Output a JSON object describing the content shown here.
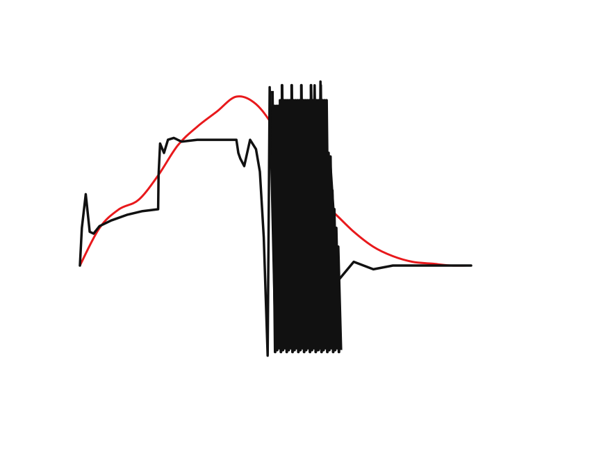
{
  "chart_data": {
    "type": "line",
    "title": "",
    "xlabel": "",
    "ylabel": "",
    "grid": false,
    "xlim": [
      0,
      1
    ],
    "ylim": [
      -0.5,
      1.1
    ],
    "series": [
      {
        "color": "#e8191c",
        "x": [
          0,
          0.05,
          0.1,
          0.15,
          0.2,
          0.25,
          0.3,
          0.35,
          0.4,
          0.45,
          0.5,
          0.55,
          0.6,
          0.65,
          0.7,
          0.75,
          0.8,
          0.85,
          0.9,
          0.95,
          1
        ],
        "y": [
          0,
          0.2,
          0.3,
          0.35,
          0.48,
          0.64,
          0.74,
          0.82,
          0.9,
          0.86,
          0.72,
          0.5,
          0.37,
          0.28,
          0.18,
          0.1,
          0.05,
          0.02,
          0.01,
          0,
          0
        ]
      },
      {
        "color": "#111111",
        "x": [
          0,
          0.005,
          0.015,
          0.025,
          0.035,
          0.05,
          0.08,
          0.12,
          0.16,
          0.2,
          0.201,
          0.205,
          0.215,
          0.225,
          0.24,
          0.26,
          0.3,
          0.35,
          0.4,
          0.405,
          0.41,
          0.42,
          0.435,
          0.45,
          0.46,
          0.47,
          0.48,
          0.485,
          0.5,
          0.505,
          0.51,
          0.52,
          0.53,
          0.54,
          0.55,
          0.56,
          0.57,
          0.58,
          0.59,
          0.6,
          0.61,
          0.615,
          0.62,
          0.64,
          0.66,
          0.7,
          0.75,
          0.8,
          0.9,
          1
        ],
        "y": [
          0,
          0.2,
          0.38,
          0.18,
          0.17,
          0.21,
          0.24,
          0.27,
          0.29,
          0.3,
          0.48,
          0.65,
          0.6,
          0.67,
          0.68,
          0.66,
          0.67,
          0.67,
          0.67,
          0.6,
          0.57,
          0.53,
          0.67,
          0.62,
          0.5,
          0.15,
          -0.48,
          0.95,
          -0.42,
          0.85,
          -0.44,
          0.85,
          -0.4,
          0.85,
          -0.4,
          0.85,
          -0.4,
          0.85,
          -0.4,
          0.96,
          -0.45,
          0.98,
          -0.43,
          0.55,
          -0.08,
          0.02,
          -0.02,
          0,
          0,
          0
        ]
      }
    ]
  }
}
